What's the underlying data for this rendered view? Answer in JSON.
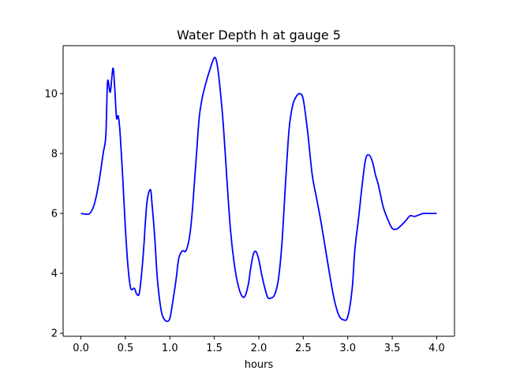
{
  "chart_data": {
    "type": "line",
    "title": "Water Depth h at gauge 5",
    "xlabel": "hours",
    "ylabel": "",
    "xlim": [
      -0.2,
      4.2
    ],
    "ylim": [
      1.9,
      11.6
    ],
    "xticks": [
      0.0,
      0.5,
      1.0,
      1.5,
      2.0,
      2.5,
      3.0,
      3.5,
      4.0
    ],
    "xtick_labels": [
      "0.0",
      "0.5",
      "1.0",
      "1.5",
      "2.0",
      "2.5",
      "3.0",
      "3.5",
      "4.0"
    ],
    "yticks": [
      2,
      4,
      6,
      8,
      10
    ],
    "ytick_labels": [
      "2",
      "4",
      "6",
      "8",
      "10"
    ],
    "grid": false,
    "legend": "none",
    "series": [
      {
        "color": "#0000ff",
        "x": [
          0.0,
          0.05,
          0.1,
          0.15,
          0.2,
          0.25,
          0.28,
          0.3,
          0.33,
          0.36,
          0.38,
          0.4,
          0.42,
          0.44,
          0.47,
          0.5,
          0.53,
          0.56,
          0.6,
          0.63,
          0.66,
          0.7,
          0.74,
          0.78,
          0.8,
          0.83,
          0.86,
          0.9,
          0.93,
          0.97,
          1.0,
          1.03,
          1.07,
          1.1,
          1.14,
          1.18,
          1.22,
          1.25,
          1.28,
          1.3,
          1.33,
          1.36,
          1.4,
          1.45,
          1.5,
          1.53,
          1.56,
          1.6,
          1.64,
          1.68,
          1.72,
          1.76,
          1.8,
          1.84,
          1.88,
          1.91,
          1.94,
          1.97,
          2.0,
          2.03,
          2.06,
          2.1,
          2.14,
          2.18,
          2.22,
          2.26,
          2.3,
          2.34,
          2.38,
          2.42,
          2.46,
          2.5,
          2.55,
          2.6,
          2.65,
          2.7,
          2.75,
          2.8,
          2.85,
          2.9,
          2.95,
          3.0,
          3.05,
          3.08,
          3.12,
          3.16,
          3.2,
          3.24,
          3.28,
          3.31,
          3.34,
          3.37,
          3.4,
          3.45,
          3.5,
          3.55,
          3.6,
          3.65,
          3.7,
          3.75,
          3.8,
          3.85,
          3.9,
          3.95,
          4.0
        ],
        "y": [
          6.0,
          5.98,
          6.0,
          6.3,
          7.0,
          8.0,
          8.6,
          10.4,
          10.05,
          10.85,
          10.2,
          9.2,
          9.25,
          8.7,
          7.2,
          5.5,
          4.2,
          3.5,
          3.5,
          3.3,
          3.4,
          4.6,
          6.3,
          6.8,
          6.3,
          5.2,
          3.8,
          2.8,
          2.5,
          2.4,
          2.5,
          3.0,
          3.8,
          4.5,
          4.75,
          4.75,
          5.2,
          6.0,
          7.2,
          8.0,
          9.2,
          9.8,
          10.3,
          10.8,
          11.2,
          11.0,
          10.3,
          9.0,
          7.2,
          5.5,
          4.4,
          3.7,
          3.3,
          3.22,
          3.6,
          4.2,
          4.65,
          4.72,
          4.45,
          4.0,
          3.6,
          3.2,
          3.18,
          3.3,
          3.8,
          5.0,
          7.0,
          8.8,
          9.6,
          9.9,
          10.0,
          9.8,
          8.7,
          7.3,
          6.5,
          5.7,
          4.8,
          3.9,
          3.1,
          2.6,
          2.45,
          2.55,
          3.5,
          4.8,
          5.8,
          6.9,
          7.8,
          7.95,
          7.7,
          7.3,
          7.0,
          6.6,
          6.2,
          5.8,
          5.5,
          5.48,
          5.6,
          5.75,
          5.92,
          5.9,
          5.95,
          6.0,
          6.0,
          6.0,
          6.0
        ]
      }
    ]
  }
}
